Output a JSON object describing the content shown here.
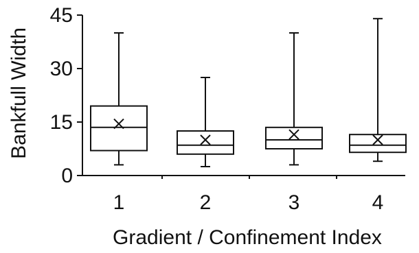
{
  "chart_data": {
    "type": "box",
    "title": "",
    "xlabel": "Gradient / Confinement Index",
    "ylabel": "Bankfull Width",
    "ylim": [
      0,
      45
    ],
    "yticks": [
      0,
      15,
      30,
      45
    ],
    "categories": [
      "1",
      "2",
      "3",
      "4"
    ],
    "boxes": [
      {
        "category": "1",
        "whisker_low": 3,
        "q1": 7,
        "median": 13.5,
        "q3": 19.5,
        "whisker_high": 40,
        "mean": 14.5
      },
      {
        "category": "2",
        "whisker_low": 2.5,
        "q1": 6,
        "median": 8.5,
        "q3": 12.5,
        "whisker_high": 27.5,
        "mean": 10
      },
      {
        "category": "3",
        "whisker_low": 3,
        "q1": 7.5,
        "median": 10,
        "q3": 13.5,
        "whisker_high": 40,
        "mean": 11.5
      },
      {
        "category": "4",
        "whisker_low": 4,
        "q1": 6.5,
        "median": 8.5,
        "q3": 11.5,
        "whisker_high": 44,
        "mean": 10
      }
    ],
    "grid": false,
    "legend": "none"
  }
}
